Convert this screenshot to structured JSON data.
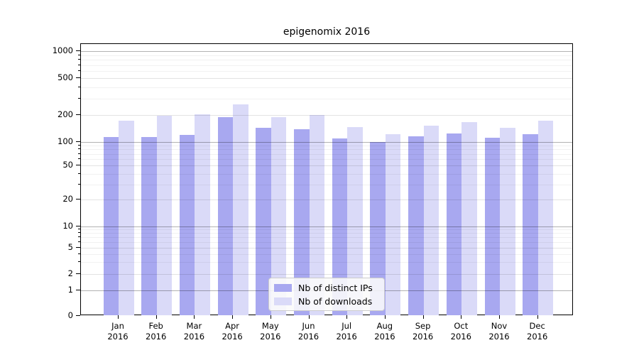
{
  "figure": {
    "title": "epigenomix 2016"
  },
  "legend": {
    "items": [
      {
        "label": "Nb of distinct IPs",
        "color": "#a8a8f0"
      },
      {
        "label": "Nb of downloads",
        "color": "#dadaf8"
      }
    ]
  },
  "chart_data": {
    "type": "bar",
    "title": "epigenomix 2016",
    "categories": [
      "Jan",
      "Feb",
      "Mar",
      "Apr",
      "May",
      "Jun",
      "Jul",
      "Aug",
      "Sep",
      "Oct",
      "Nov",
      "Dec"
    ],
    "year_label": "2016",
    "series": [
      {
        "name": "Nb of distinct IPs",
        "color": "#a8a8f0",
        "values": [
          113,
          113,
          119,
          186,
          143,
          138,
          108,
          100,
          115,
          124,
          110,
          122
        ]
      },
      {
        "name": "Nb of downloads",
        "color": "#dadaf8",
        "values": [
          170,
          196,
          201,
          258,
          188,
          200,
          145,
          121,
          151,
          165,
          143,
          171
        ]
      }
    ],
    "xlabel": "",
    "ylabel": "",
    "yscale": "symlog",
    "yticks": [
      0,
      1,
      2,
      5,
      10,
      20,
      50,
      100,
      200,
      500,
      1000
    ],
    "ylim": [
      0,
      1000
    ],
    "grid": true,
    "legend_position": "lower center"
  }
}
